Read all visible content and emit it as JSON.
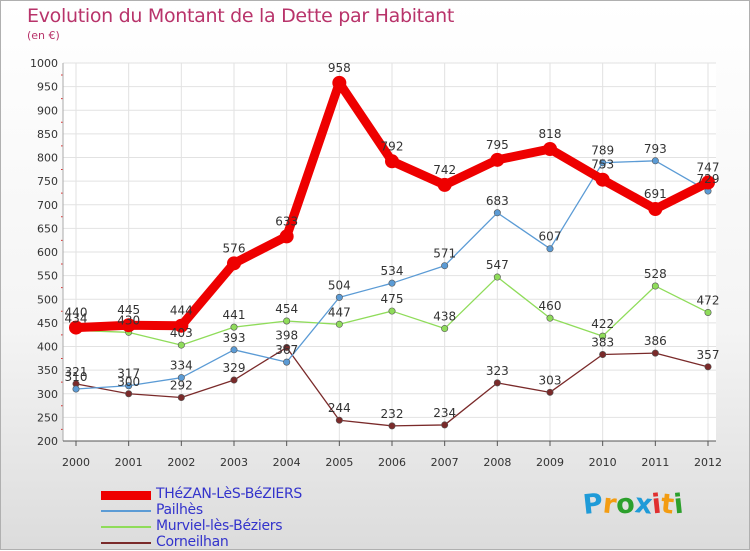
{
  "chart_data": {
    "type": "line",
    "title": "Evolution du Montant de la Dette par Habitant",
    "subtitle": "(en €)",
    "x": [
      "2000",
      "2001",
      "2002",
      "2003",
      "2004",
      "2005",
      "2006",
      "2007",
      "2008",
      "2009",
      "2010",
      "2011",
      "2012"
    ],
    "ylim": [
      200,
      1000
    ],
    "yticks": [
      200,
      250,
      300,
      350,
      400,
      450,
      500,
      550,
      600,
      650,
      700,
      750,
      800,
      850,
      900,
      950,
      1000
    ],
    "grid": true,
    "legend_position": "bottom-left",
    "series": [
      {
        "name": "THéZAN-LèS-BéZIERS",
        "color": "#ee0000",
        "values": [
          440,
          445,
          444,
          576,
          633,
          958,
          792,
          742,
          795,
          818,
          753,
          691,
          747
        ]
      },
      {
        "name": "Pailhès",
        "color": "#5b9bd5",
        "values": [
          310,
          317,
          334,
          393,
          367,
          504,
          534,
          571,
          683,
          607,
          789,
          793,
          729
        ]
      },
      {
        "name": "Murviel-lès-Béziers",
        "color": "#8fdc5a",
        "values": [
          434,
          430,
          403,
          441,
          454,
          447,
          475,
          438,
          547,
          460,
          422,
          528,
          472
        ]
      },
      {
        "name": "Corneilhan",
        "color": "#7a2a2a",
        "values": [
          321,
          300,
          292,
          329,
          398,
          244,
          232,
          234,
          323,
          303,
          383,
          386,
          357
        ]
      }
    ]
  },
  "logo": {
    "letters": [
      "P",
      "r",
      "o",
      "x",
      "i",
      "t",
      "i"
    ],
    "colors": [
      "#1f9bd8",
      "#f39c12",
      "#2ca02c",
      "#1f9bd8",
      "#e03030",
      "#f39c12",
      "#2ca02c"
    ]
  }
}
